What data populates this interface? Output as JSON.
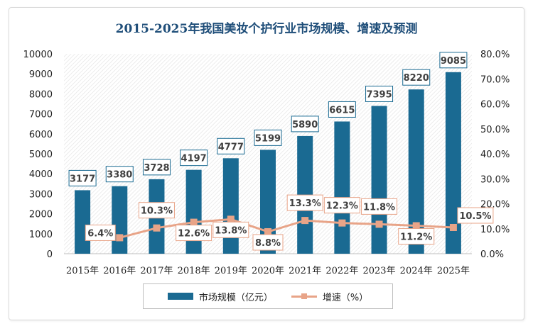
{
  "chart_data": {
    "type": "bar+line",
    "title": "2015-2025年我国美妆个护行业市场规模、增速及预测",
    "categories": [
      "2015年",
      "2016年",
      "2017年",
      "2018年",
      "2019年",
      "2020年",
      "2021年",
      "2022年",
      "2023年",
      "2024年",
      "2025年"
    ],
    "y_left": {
      "ylim": [
        0,
        10000
      ],
      "ticks": [
        "0",
        "1000",
        "2000",
        "3000",
        "4000",
        "5000",
        "6000",
        "7000",
        "8000",
        "9000",
        "10000"
      ]
    },
    "y_right": {
      "ylim": [
        0,
        80
      ],
      "ticks": [
        "0.0%",
        "10.0%",
        "20.0%",
        "30.0%",
        "40.0%",
        "50.0%",
        "60.0%",
        "70.0%",
        "80.0%"
      ]
    },
    "series": [
      {
        "name": "市场规模（亿元）",
        "type": "bar",
        "color": "#1a6a92",
        "values": [
          3177,
          3380,
          3728,
          4197,
          4777,
          5199,
          5890,
          6615,
          7395,
          8220,
          9085
        ],
        "labels": [
          "3177",
          "3380",
          "3728",
          "4197",
          "4777",
          "5199",
          "5890",
          "6615",
          "7395",
          "8220",
          "9085"
        ]
      },
      {
        "name": "增速（%）",
        "type": "line",
        "color": "#e8a488",
        "values": [
          null,
          6.4,
          10.3,
          12.6,
          13.8,
          8.8,
          13.3,
          12.3,
          11.8,
          11.2,
          10.5
        ],
        "labels": [
          "",
          "6.4%",
          "10.3%",
          "12.6%",
          "13.8%",
          "8.8%",
          "13.3%",
          "12.3%",
          "11.8%",
          "11.2%",
          "10.5%"
        ]
      }
    ],
    "legend": "bottom"
  },
  "legend": {
    "bar_label": "市场规模（亿元）",
    "line_label": "增速（%）"
  }
}
